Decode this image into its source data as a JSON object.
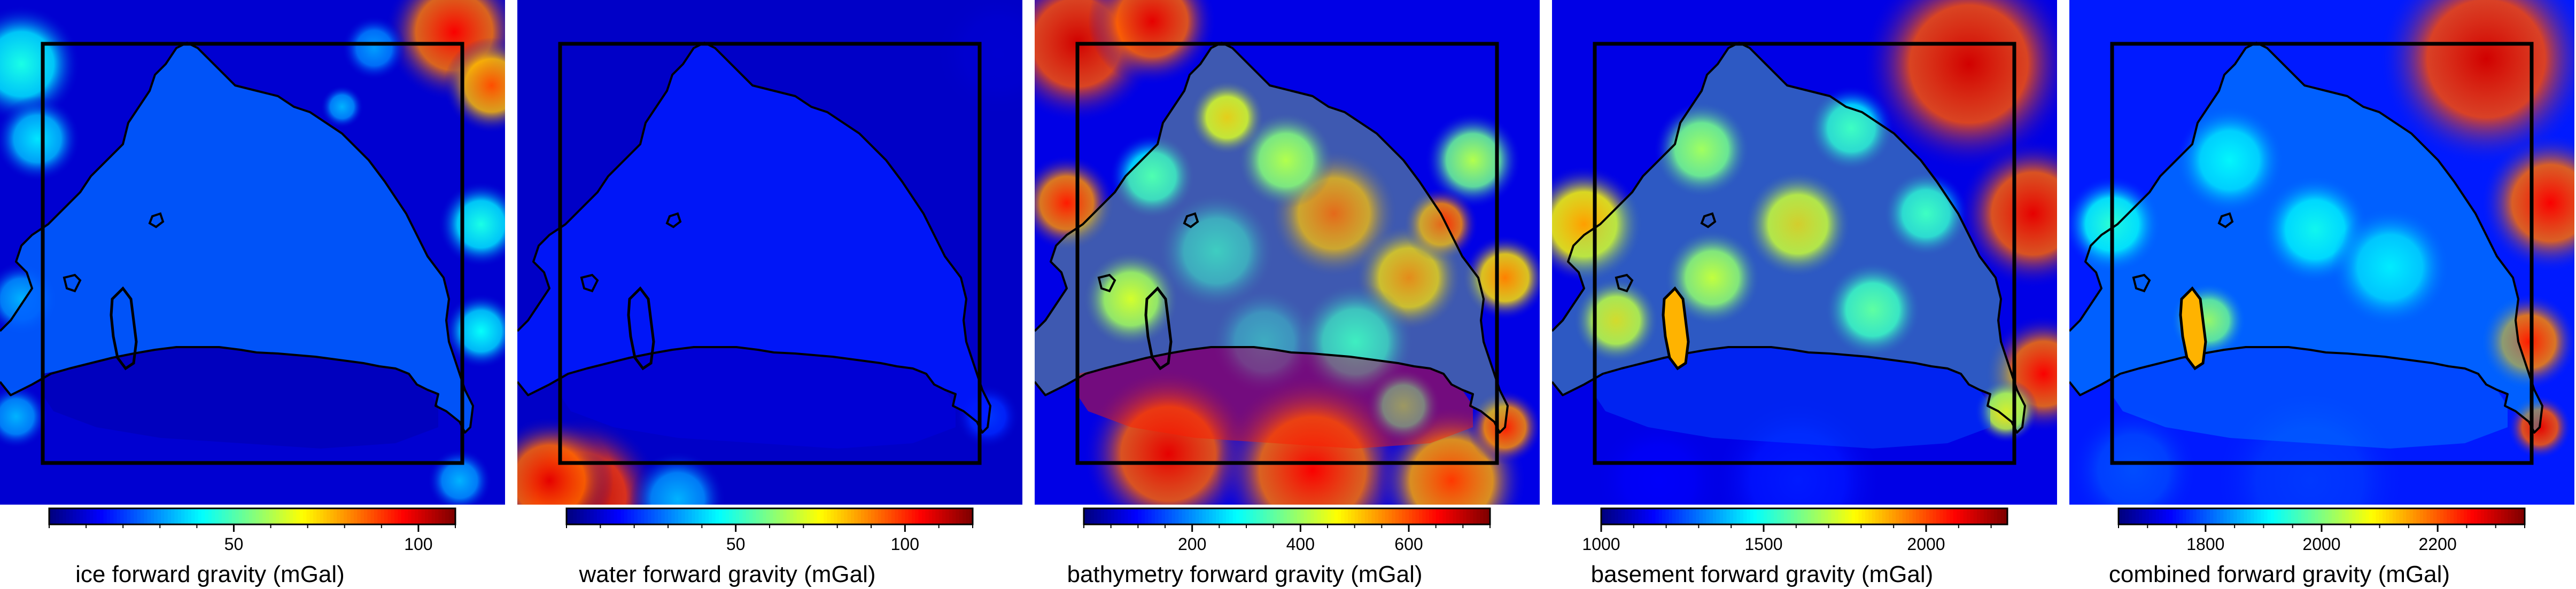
{
  "figure": {
    "background": "#ffffff",
    "frame_color": "#000000",
    "coastline_color": "#000000",
    "colormap": "jet",
    "colormap_stops": [
      "#000080",
      "#0000ff",
      "#0080ff",
      "#00ffff",
      "#80ff80",
      "#ffff00",
      "#ff8000",
      "#ff0000",
      "#800000"
    ]
  },
  "chart_data": [
    {
      "type": "heatmap",
      "field": "ice",
      "xlabel": "ice forward gravity (mGal)",
      "colorbar": {
        "min": 0,
        "max": 110,
        "ticks": [
          50,
          100
        ],
        "minor_step": 10
      },
      "background_level": 0.08,
      "interior_level": 0.22,
      "shelf_level": 0.06,
      "border_levels": {
        "left": 0.35,
        "top_right": 0.85,
        "right": 0.4
      }
    },
    {
      "type": "heatmap",
      "field": "water",
      "xlabel": "water forward gravity (mGal)",
      "colorbar": {
        "min": 0,
        "max": 120,
        "ticks": [
          50,
          100
        ],
        "minor_step": 10
      },
      "background_level": 0.07,
      "interior_level": 0.15,
      "shelf_level": 0.1,
      "border_levels": {
        "bottom_left": 0.95,
        "left": 0.1,
        "right": 0.12
      }
    },
    {
      "type": "heatmap",
      "field": "bathymetry",
      "xlabel": "bathymetry forward gravity (mGal)",
      "colorbar": {
        "min": 0,
        "max": 750,
        "ticks": [
          200,
          400,
          600
        ],
        "minor_step": 50
      },
      "background_level": 0.1,
      "interior_level": 0.55,
      "shelf_level": 0.85,
      "border_levels": {
        "top_left": 0.9,
        "bottom": 0.88,
        "right": 0.75
      }
    },
    {
      "type": "heatmap",
      "field": "basement",
      "xlabel": "basement forward gravity (mGal)",
      "colorbar": {
        "min": 1000,
        "max": 2250,
        "ticks": [
          1000,
          1500,
          2000
        ],
        "minor_step": 100
      },
      "background_level": 0.1,
      "interior_level": 0.5,
      "shelf_level": 0.2,
      "border_levels": {
        "top_right": 0.92,
        "right": 0.88,
        "left": 0.7
      }
    },
    {
      "type": "heatmap",
      "field": "combined",
      "xlabel": "combined forward gravity (mGal)",
      "colorbar": {
        "min": 1650,
        "max": 2350,
        "ticks": [
          1800,
          2000,
          2200
        ],
        "minor_step": 50
      },
      "background_level": 0.15,
      "interior_level": 0.35,
      "shelf_level": 0.25,
      "border_levels": {
        "top_right": 0.92,
        "right": 0.85,
        "bottom": 0.15
      }
    }
  ]
}
